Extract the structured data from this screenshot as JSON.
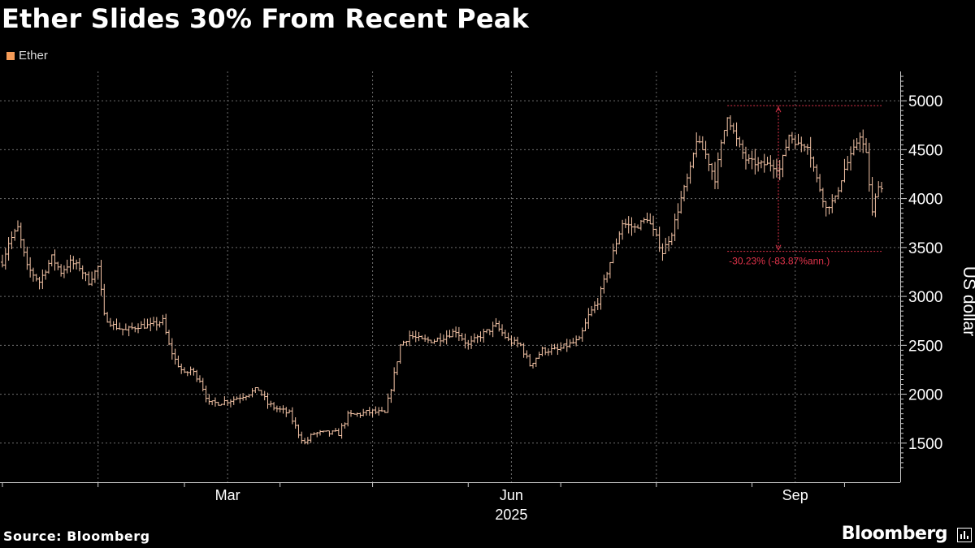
{
  "title": "Ether Slides 30% From Recent Peak",
  "footer": {
    "source": "Source: Bloomberg",
    "brand": "Bloomberg"
  },
  "brand_icon": "bar-chart-logo-icon",
  "colors": {
    "background": "#000000",
    "series": "#f7c6a8",
    "legend": "#f59b57",
    "annotation": "#e0334a",
    "grid": "#6e6e6e",
    "axis": "#cfcfcf",
    "text": "#ffffff"
  },
  "chart_data": {
    "type": "ohlc",
    "title": "Ether Slides 30% From Recent Peak",
    "ylabel": "US dollar",
    "ylim": [
      1100,
      5300
    ],
    "yticks": [
      1500,
      2000,
      2500,
      3000,
      3500,
      4000,
      4500,
      5000
    ],
    "ytick_labels": [
      "1500",
      "2000",
      "2500",
      "3000",
      "3500",
      "4000",
      "4500",
      "5000"
    ],
    "x_range": [
      "2025-01-01",
      "2025-10-13"
    ],
    "xticks": [
      {
        "date": "2025-03-15",
        "label": "Mar"
      },
      {
        "date": "2025-06-15",
        "label": "Jun"
      },
      {
        "date": "2025-09-15",
        "label": "Sep"
      }
    ],
    "year_label": {
      "date": "2025-06-15",
      "label": "2025"
    },
    "gridlines": [
      "2025-02-01",
      "2025-05-01",
      "2025-08-01"
    ],
    "grid": true,
    "legend": {
      "position": "top-left",
      "entries": [
        "Ether"
      ]
    },
    "series": [
      {
        "name": "Ether",
        "anchors": [
          [
            "2025-01-01",
            3350
          ],
          [
            "2025-01-03",
            3550
          ],
          [
            "2025-01-06",
            3700
          ],
          [
            "2025-01-09",
            3300
          ],
          [
            "2025-01-13",
            3150
          ],
          [
            "2025-01-17",
            3400
          ],
          [
            "2025-01-20",
            3250
          ],
          [
            "2025-01-23",
            3350
          ],
          [
            "2025-01-26",
            3300
          ],
          [
            "2025-01-29",
            3150
          ],
          [
            "2025-02-01",
            3300
          ],
          [
            "2025-02-03",
            2800
          ],
          [
            "2025-02-06",
            2700
          ],
          [
            "2025-02-10",
            2650
          ],
          [
            "2025-02-14",
            2700
          ],
          [
            "2025-02-18",
            2700
          ],
          [
            "2025-02-22",
            2750
          ],
          [
            "2025-02-24",
            2500
          ],
          [
            "2025-02-26",
            2350
          ],
          [
            "2025-03-01",
            2200
          ],
          [
            "2025-03-03",
            2250
          ],
          [
            "2025-03-06",
            2150
          ],
          [
            "2025-03-09",
            1900
          ],
          [
            "2025-03-13",
            1920
          ],
          [
            "2025-03-17",
            1950
          ],
          [
            "2025-03-21",
            2000
          ],
          [
            "2025-03-25",
            2050
          ],
          [
            "2025-03-28",
            1900
          ],
          [
            "2025-03-31",
            1850
          ],
          [
            "2025-04-04",
            1800
          ],
          [
            "2025-04-07",
            1600
          ],
          [
            "2025-04-09",
            1500
          ],
          [
            "2025-04-12",
            1600
          ],
          [
            "2025-04-16",
            1600
          ],
          [
            "2025-04-20",
            1600
          ],
          [
            "2025-04-23",
            1780
          ],
          [
            "2025-04-27",
            1800
          ],
          [
            "2025-05-01",
            1820
          ],
          [
            "2025-05-05",
            1800
          ],
          [
            "2025-05-08",
            2200
          ],
          [
            "2025-05-10",
            2500
          ],
          [
            "2025-05-13",
            2600
          ],
          [
            "2025-05-17",
            2550
          ],
          [
            "2025-05-21",
            2550
          ],
          [
            "2025-05-25",
            2600
          ],
          [
            "2025-05-28",
            2650
          ],
          [
            "2025-06-01",
            2500
          ],
          [
            "2025-06-05",
            2600
          ],
          [
            "2025-06-10",
            2700
          ],
          [
            "2025-06-14",
            2550
          ],
          [
            "2025-06-18",
            2500
          ],
          [
            "2025-06-21",
            2300
          ],
          [
            "2025-06-25",
            2450
          ],
          [
            "2025-06-30",
            2450
          ],
          [
            "2025-07-03",
            2500
          ],
          [
            "2025-07-07",
            2550
          ],
          [
            "2025-07-10",
            2800
          ],
          [
            "2025-07-13",
            2950
          ],
          [
            "2025-07-17",
            3350
          ],
          [
            "2025-07-21",
            3750
          ],
          [
            "2025-07-25",
            3700
          ],
          [
            "2025-07-29",
            3800
          ],
          [
            "2025-08-01",
            3600
          ],
          [
            "2025-08-03",
            3450
          ],
          [
            "2025-08-06",
            3650
          ],
          [
            "2025-08-09",
            4000
          ],
          [
            "2025-08-12",
            4300
          ],
          [
            "2025-08-14",
            4600
          ],
          [
            "2025-08-17",
            4450
          ],
          [
            "2025-08-20",
            4200
          ],
          [
            "2025-08-22",
            4550
          ],
          [
            "2025-08-24",
            4850
          ],
          [
            "2025-08-27",
            4600
          ],
          [
            "2025-08-30",
            4400
          ],
          [
            "2025-09-03",
            4350
          ],
          [
            "2025-09-07",
            4350
          ],
          [
            "2025-09-10",
            4300
          ],
          [
            "2025-09-13",
            4650
          ],
          [
            "2025-09-16",
            4550
          ],
          [
            "2025-09-19",
            4550
          ],
          [
            "2025-09-22",
            4200
          ],
          [
            "2025-09-25",
            3900
          ],
          [
            "2025-09-28",
            4000
          ],
          [
            "2025-10-01",
            4300
          ],
          [
            "2025-10-04",
            4500
          ],
          [
            "2025-10-06",
            4650
          ],
          [
            "2025-10-08",
            4450
          ],
          [
            "2025-10-10",
            3850
          ],
          [
            "2025-10-12",
            4150
          ],
          [
            "2025-10-13",
            4100
          ]
        ]
      }
    ],
    "annotation": {
      "label": "-30.23% (-83.87%ann.)",
      "peak_date": "2025-08-24",
      "peak": 4950,
      "trough_date": "2025-11-11",
      "trough": 3460
    }
  }
}
